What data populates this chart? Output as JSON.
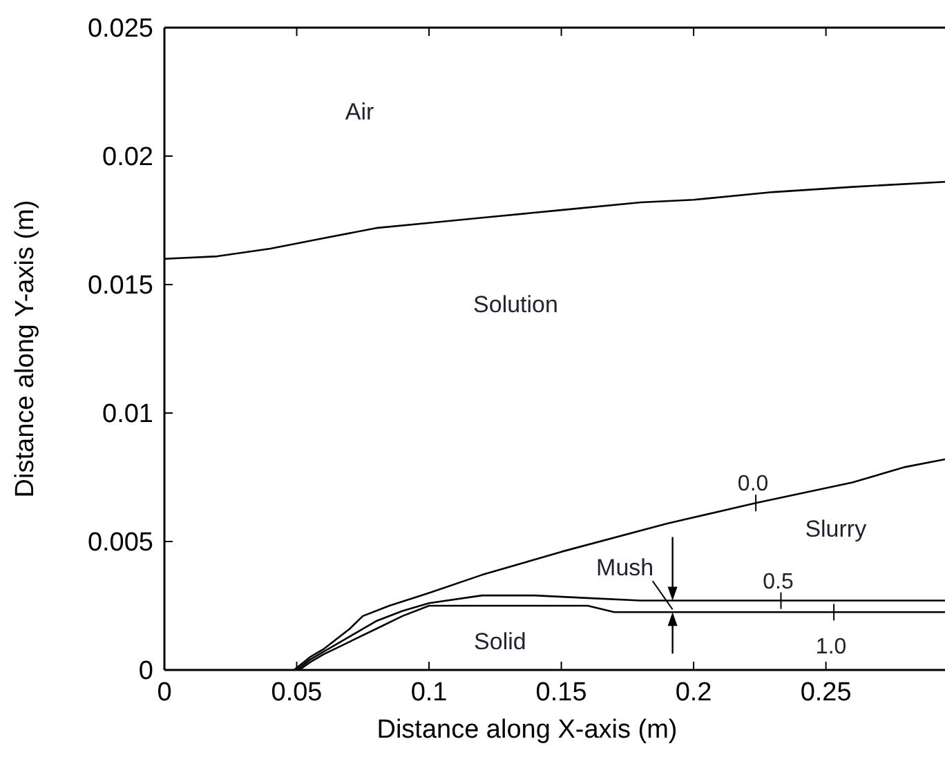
{
  "chart_data": {
    "type": "line",
    "xlabel": "Distance along X-axis (m)",
    "ylabel": "Distance along Y-axis (m)",
    "xlim": [
      0,
      0.295
    ],
    "ylim": [
      0,
      0.025
    ],
    "xticks": [
      0,
      0.05,
      0.1,
      0.15,
      0.2,
      0.25
    ],
    "yticks": [
      0,
      0.005,
      0.01,
      0.015,
      0.02,
      0.025
    ],
    "grid": false,
    "marker": "none",
    "line_style": "solid",
    "series": [
      {
        "color": "#000000",
        "x": [
          0,
          0.02,
          0.04,
          0.06,
          0.08,
          0.1,
          0.12,
          0.15,
          0.18,
          0.2,
          0.23,
          0.26,
          0.295
        ],
        "values": [
          0.016,
          0.0161,
          0.0164,
          0.0168,
          0.0172,
          0.0174,
          0.0176,
          0.0179,
          0.0182,
          0.0183,
          0.0186,
          0.0188,
          0.019
        ]
      },
      {
        "color": "#000000",
        "x": [
          0.049,
          0.055,
          0.06,
          0.07,
          0.075,
          0.085,
          0.1,
          0.12,
          0.15,
          0.19,
          0.2235,
          0.26,
          0.28,
          0.295
        ],
        "values": [
          0,
          0.0005,
          0.0008,
          0.0016,
          0.0021,
          0.0025,
          0.003,
          0.0037,
          0.0046,
          0.0057,
          0.0065,
          0.0073,
          0.0079,
          0.0082
        ]
      },
      {
        "color": "#000000",
        "x": [
          0.05,
          0.055,
          0.06,
          0.07,
          0.08,
          0.09,
          0.1,
          0.12,
          0.14,
          0.16,
          0.18,
          0.19,
          0.295
        ],
        "values": [
          0,
          0.0004,
          0.0007,
          0.0013,
          0.0019,
          0.0023,
          0.0026,
          0.0029,
          0.0029,
          0.0028,
          0.0027,
          0.0027,
          0.0027
        ]
      },
      {
        "color": "#000000",
        "x": [
          0.051,
          0.055,
          0.06,
          0.07,
          0.08,
          0.09,
          0.1,
          0.12,
          0.16,
          0.17,
          0.19,
          0.295
        ],
        "values": [
          0,
          0.0003,
          0.0006,
          0.0011,
          0.0016,
          0.0021,
          0.0025,
          0.0025,
          0.0025,
          0.00225,
          0.00225,
          0.00225
        ]
      }
    ],
    "annotations": [
      "Air",
      "Solution",
      "Slurry",
      "Mush",
      "Solid",
      {
        "text": "0.0",
        "x": 0.2235,
        "y": 0.0065
      },
      {
        "text": "0.5",
        "x": 0.233,
        "y": 0.0027
      },
      {
        "text": "1.0",
        "x": 0.253,
        "y": 0.00225
      }
    ]
  }
}
